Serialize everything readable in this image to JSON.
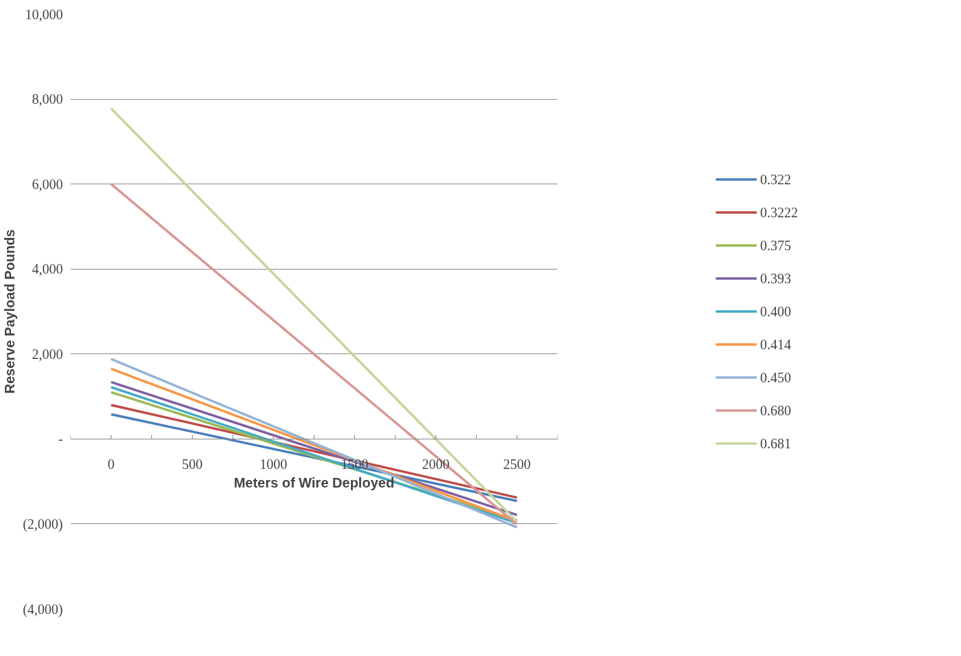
{
  "chart_data": {
    "type": "line",
    "xlabel": "Meters of Wire Deployed",
    "ylabel": "Reserve Payload Pounds",
    "xlim": [
      -250,
      2750
    ],
    "xticks": [
      {
        "value": -250,
        "label": null
      },
      0,
      {
        "value": 250,
        "label": null
      },
      500,
      {
        "value": 750,
        "label": null
      },
      1000,
      {
        "value": 1250,
        "label": null
      },
      1500,
      {
        "value": 1750,
        "label": null
      },
      2000,
      {
        "value": 2250,
        "label": null
      },
      2500,
      {
        "value": 2750,
        "label": null
      }
    ],
    "ylim": [
      -4000,
      10000
    ],
    "yticks": [
      {
        "value": -4000,
        "label": "(4,000)"
      },
      {
        "value": -2000,
        "label": "(2,000)"
      },
      {
        "value": 0,
        "label": "-"
      },
      {
        "value": 2000,
        "label": "2,000"
      },
      {
        "value": 4000,
        "label": "4,000"
      },
      {
        "value": 6000,
        "label": "6,000"
      },
      {
        "value": 8000,
        "label": "8,000"
      },
      {
        "value": 10000,
        "label": "10,000"
      }
    ],
    "x": [
      0,
      2500
    ],
    "grid": "y",
    "legend": "right",
    "marker": "none",
    "line_style": "solid",
    "series": [
      {
        "name": "0.322",
        "color": "#4a7ebb",
        "values": [
          580,
          -1460
        ]
      },
      {
        "name": "0.3222",
        "color": "#be4b48",
        "values": [
          800,
          -1380
        ]
      },
      {
        "name": "0.375",
        "color": "#98b954",
        "values": [
          1100,
          -1920
        ]
      },
      {
        "name": "0.393",
        "color": "#7d60a0",
        "values": [
          1340,
          -1790
        ]
      },
      {
        "name": "0.400",
        "color": "#46aac5",
        "values": [
          1220,
          -1980
        ]
      },
      {
        "name": "0.414",
        "color": "#f79646",
        "values": [
          1650,
          -1940
        ]
      },
      {
        "name": "0.450",
        "color": "#95b3d7",
        "values": [
          1880,
          -2080
        ]
      },
      {
        "name": "0.680",
        "color": "#d99694",
        "values": [
          6000,
          -2010
        ]
      },
      {
        "name": "0.681",
        "color": "#c3d69b",
        "values": [
          7780,
          -1950
        ]
      }
    ]
  }
}
